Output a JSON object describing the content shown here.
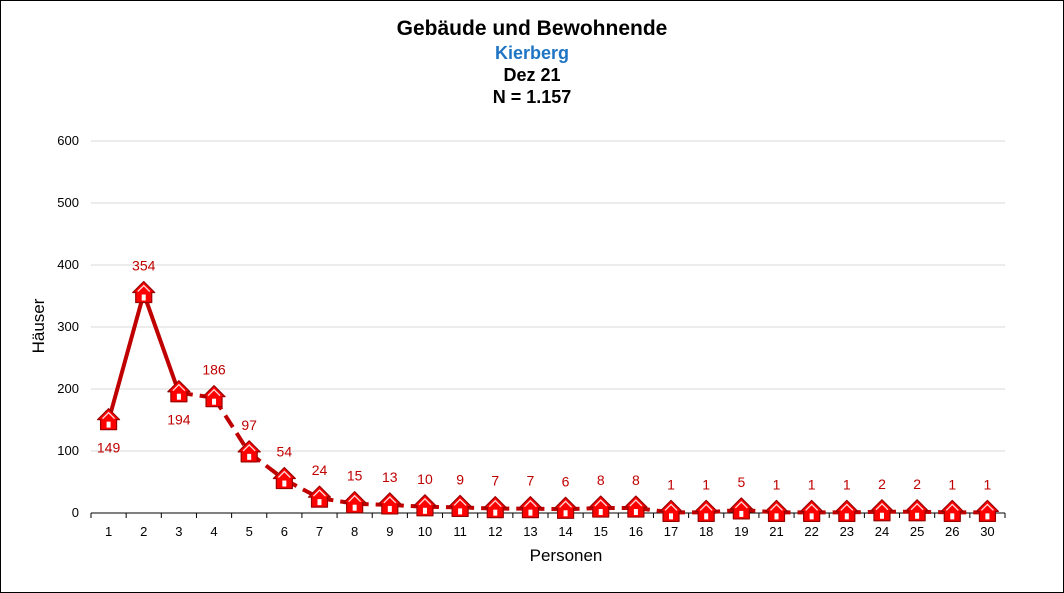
{
  "chart_data": {
    "type": "line",
    "title": "Gebäude und Bewohnende",
    "subtitle": "Kierberg",
    "period": "Dez 21",
    "n_label": "N = 1.157",
    "xlabel": "Personen",
    "ylabel": "Häuser",
    "ylim": [
      0,
      600
    ],
    "yticks": [
      "0",
      "100",
      "200",
      "300",
      "400",
      "500",
      "600"
    ],
    "grid": true,
    "categories": [
      "1",
      "2",
      "3",
      "4",
      "5",
      "6",
      "7",
      "8",
      "9",
      "10",
      "11",
      "12",
      "13",
      "14",
      "15",
      "16",
      "17",
      "18",
      "19",
      "21",
      "22",
      "23",
      "24",
      "25",
      "26",
      "30"
    ],
    "values": [
      149,
      354,
      194,
      186,
      97,
      54,
      24,
      15,
      13,
      10,
      9,
      7,
      7,
      6,
      8,
      8,
      1,
      1,
      5,
      1,
      1,
      1,
      2,
      2,
      1,
      1
    ],
    "line_color": "#c00000",
    "marker_color": "#ff0000",
    "label_color": "#c00000"
  }
}
